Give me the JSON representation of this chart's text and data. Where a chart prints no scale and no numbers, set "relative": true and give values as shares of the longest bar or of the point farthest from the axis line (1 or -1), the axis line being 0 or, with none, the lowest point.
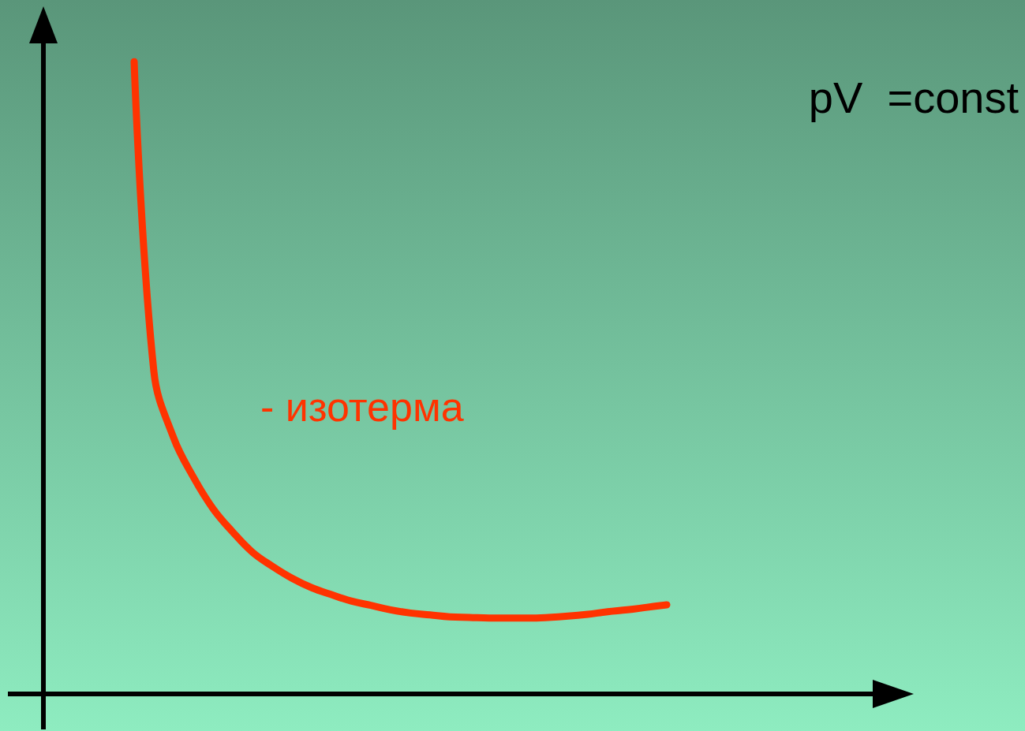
{
  "chart_data": {
    "type": "line",
    "relative": true,
    "categories": [
      null,
      null,
      null,
      null,
      null,
      null,
      null,
      null,
      null,
      null,
      null,
      null,
      null,
      null,
      null,
      null,
      null,
      null,
      null,
      null,
      null,
      null,
      null,
      null,
      null,
      null,
      null,
      null
    ],
    "series": [
      {
        "name": "- изотерма",
        "color": "#ff3300",
        "values": [
          1,
          0.51,
          0.405,
          0.343,
          0.293,
          0.256,
          0.224,
          0.202,
          0.183,
          0.168,
          0.157,
          0.147,
          0.14,
          0.133,
          0.128,
          0.125,
          0.122,
          0.121,
          0.12,
          0.12,
          0.12,
          0.121,
          0.123,
          0.126,
          0.13,
          0.133,
          0.137,
          0.141
        ]
      }
    ],
    "annotations": [
      "pV  =const"
    ],
    "grid": false,
    "legend": false,
    "line_style": "solid"
  }
}
